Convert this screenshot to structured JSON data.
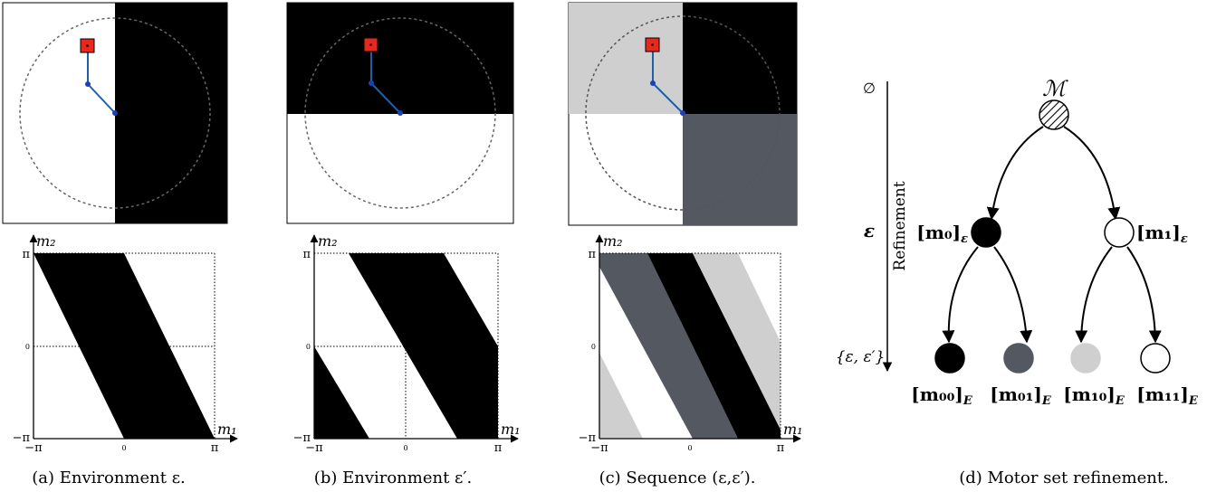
{
  "panels": [
    {
      "id": "a",
      "caption": "(a) Environment ε."
    },
    {
      "id": "b",
      "caption": "(b) Environment ε′."
    },
    {
      "id": "c",
      "caption": "(c) Sequence (ε,ε′)."
    },
    {
      "id": "d",
      "caption": "(d) Motor set refinement."
    }
  ],
  "motor_axes": {
    "x_label": "m₁",
    "y_label": "m₂",
    "x_ticks": [
      "−π",
      "0",
      "π"
    ],
    "y_ticks": [
      "π",
      "0",
      "−π"
    ]
  },
  "tree": {
    "axis": {
      "top_label": "∅",
      "mid_label": "ε",
      "bottom_label": "{ε, ε′}",
      "side_label": "Refinement"
    },
    "root": {
      "label": "ℳ"
    },
    "level1": [
      {
        "label": "[m₀]",
        "sub": "ε",
        "fill": "#000000"
      },
      {
        "label": "[m₁]",
        "sub": "ε",
        "fill": "#ffffff"
      }
    ],
    "level2": [
      {
        "label": "[m₀₀]",
        "sub": "E",
        "fill": "#000000"
      },
      {
        "label": "[m₀₁]",
        "sub": "E",
        "fill": "#545861"
      },
      {
        "label": "[m₁₀]",
        "sub": "E",
        "fill": "#cfcfcf"
      },
      {
        "label": "[m₁₁]",
        "sub": "E",
        "fill": "#ffffff"
      }
    ]
  },
  "colors": {
    "black": "#000000",
    "dark_gray": "#545861",
    "light_gray": "#cfcfcf",
    "white": "#ffffff",
    "arm": "#1f5fa8",
    "target": "#e8281e"
  }
}
